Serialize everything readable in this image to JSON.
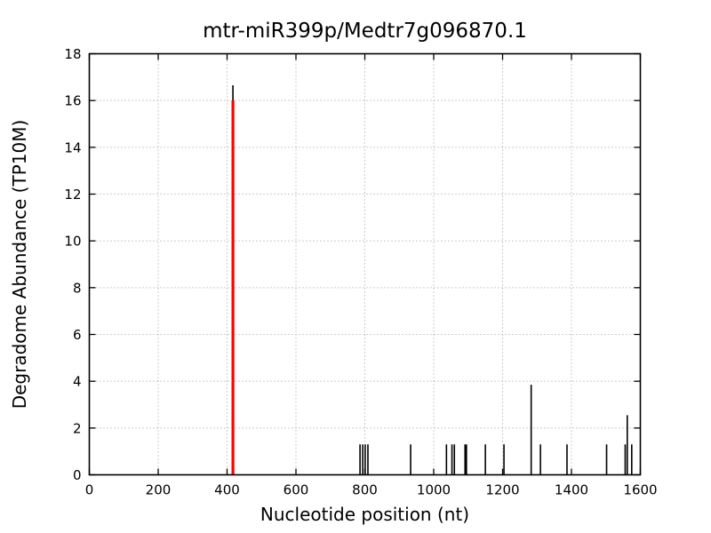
{
  "chart_data": {
    "type": "bar",
    "subtype": "vertical-spike-plot",
    "title": "mtr-miR399p/Medtr7g096870.1",
    "xlabel": "Nucleotide position (nt)",
    "ylabel": "Degradome Abundance (TP10M)",
    "xlim": [
      0,
      1600
    ],
    "ylim": [
      0,
      18
    ],
    "xticks": [
      0,
      200,
      400,
      600,
      800,
      1000,
      1200,
      1400,
      1600
    ],
    "yticks": [
      0,
      2,
      4,
      6,
      8,
      10,
      12,
      14,
      16,
      18
    ],
    "grid": true,
    "grid_style": "dotted",
    "legend": "none",
    "series": [
      {
        "name": "degradome_abundance_peaks",
        "color": "#000000",
        "line_width": 1.6,
        "points": [
          [
            417,
            16.65
          ],
          [
            786,
            1.3
          ],
          [
            794,
            1.3
          ],
          [
            801,
            1.3
          ],
          [
            809,
            1.3
          ],
          [
            933,
            1.3
          ],
          [
            1037,
            1.3
          ],
          [
            1053,
            1.3
          ],
          [
            1060,
            1.3
          ],
          [
            1091,
            1.3
          ],
          [
            1095,
            1.3
          ],
          [
            1150,
            1.3
          ],
          [
            1204,
            1.3
          ],
          [
            1283,
            3.85
          ],
          [
            1310,
            1.3
          ],
          [
            1387,
            1.3
          ],
          [
            1502,
            1.3
          ],
          [
            1556,
            1.3
          ],
          [
            1562,
            2.55
          ],
          [
            1575,
            1.3
          ]
        ]
      },
      {
        "name": "mirna_cleavage_site_marker",
        "color": "#ff0000",
        "line_width": 3.2,
        "points": [
          [
            417,
            16.0
          ]
        ]
      }
    ]
  },
  "colors": {
    "background": "#ffffff",
    "axis": "#000000",
    "grid": "#999999",
    "peak": "#000000",
    "cleavage_marker": "#ff0000",
    "text": "#000000"
  }
}
